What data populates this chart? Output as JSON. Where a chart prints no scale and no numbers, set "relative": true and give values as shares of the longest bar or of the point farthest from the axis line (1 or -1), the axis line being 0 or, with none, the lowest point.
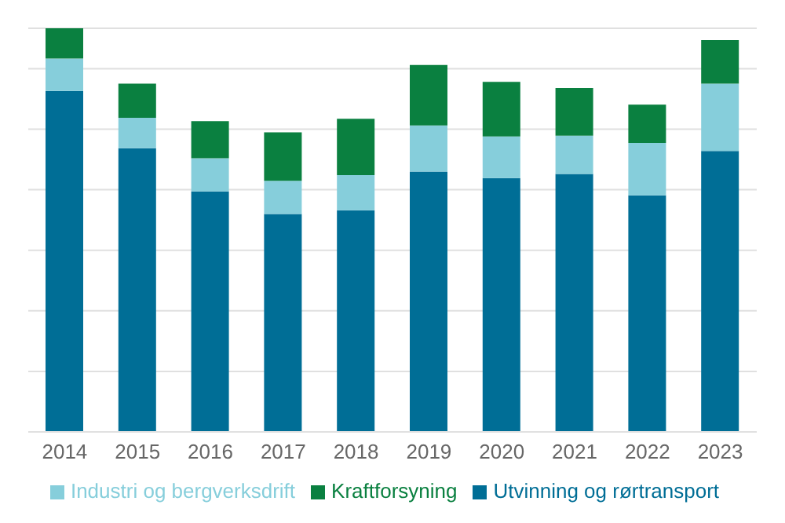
{
  "chart_data": {
    "type": "bar",
    "stacked": true,
    "relative": true,
    "grid": "y",
    "legend": "bottom",
    "categories": [
      "2014",
      "2015",
      "2016",
      "2017",
      "2018",
      "2019",
      "2020",
      "2021",
      "2022",
      "2023"
    ],
    "series": [
      {
        "name": "Utvinning og rørtransport",
        "color": "#006e96",
        "values": [
          0.845,
          0.703,
          0.596,
          0.54,
          0.549,
          0.645,
          0.629,
          0.639,
          0.586,
          0.696
        ]
      },
      {
        "name": "Industri og bergverksdrift",
        "color": "#86cedb",
        "values": [
          0.08,
          0.075,
          0.082,
          0.082,
          0.087,
          0.114,
          0.103,
          0.095,
          0.13,
          0.167
        ]
      },
      {
        "name": "Kraftforsyning",
        "color": "#0a8040",
        "values": [
          0.075,
          0.085,
          0.092,
          0.12,
          0.14,
          0.15,
          0.135,
          0.118,
          0.095,
          0.108
        ]
      }
    ]
  }
}
